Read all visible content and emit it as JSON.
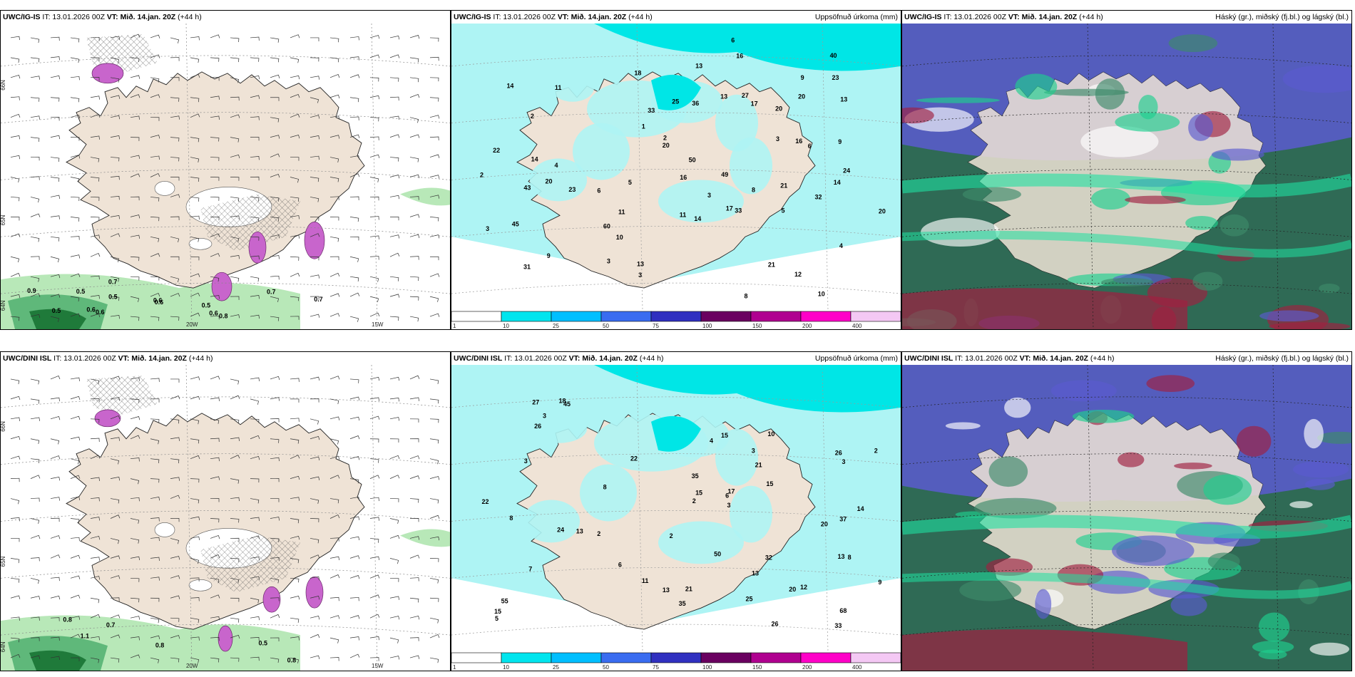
{
  "colors": {
    "land": "#efe3d6",
    "snow_pink": "#c865cc",
    "precip_light": "#aef4f4",
    "precip_mid": "#00e6e6",
    "green_light": "#b8e8b8",
    "green_dark": "#1f7a3a",
    "cloud_high": "#3d8a6a",
    "cloud_mid": "#5a5ad0",
    "cloud_low": "#a02040",
    "colorbar": [
      "#ffffff",
      "#00e5ee",
      "#00bfff",
      "#3a6cf0",
      "#3030c0",
      "#6a0060",
      "#b00090",
      "#ff00c8",
      "#f4c8f4"
    ]
  },
  "colorbar_ticks": [
    "1",
    "10",
    "25",
    "50",
    "75",
    "100",
    "150",
    "200",
    "400"
  ],
  "rows": [
    {
      "model": "UWC/IG-IS",
      "panels": [
        {
          "id": "wind-snow",
          "model": "UWC/IG-IS",
          "it": "IT: 13.01.2026 00Z",
          "vt_label": "VT:",
          "vt": "Mið. 14.jan. 20Z",
          "lead": "(+44 h)",
          "right": "",
          "lon_labels": [
            "20W",
            "15W"
          ],
          "lat_labels": [
            "66N",
            "65N",
            "64N"
          ],
          "values": [
            "0.8",
            "0.7",
            "0.6",
            "0.5",
            "0.7",
            "0.6",
            "0.7",
            "0.5",
            "0.6",
            "0.6",
            "0.5",
            "0.9",
            "0.6",
            "0.5"
          ]
        },
        {
          "id": "precip",
          "model": "UWC/IG-IS",
          "it": "IT: 13.01.2026 00Z",
          "vt_label": "VT:",
          "vt": "Mið. 14.jan. 20Z",
          "lead": "(+44 h)",
          "right": "Uppsöfnuð úrkoma (mm)",
          "values": [
            "10",
            "20",
            "17",
            "14",
            "4",
            "2",
            "9",
            "6",
            "20",
            "25",
            "17",
            "12",
            "10",
            "18",
            "49",
            "45",
            "21",
            "50",
            "22",
            "31",
            "40",
            "36",
            "16",
            "20",
            "24",
            "14",
            "23",
            "16",
            "20",
            "23",
            "33",
            "43",
            "60",
            "27",
            "33",
            "32",
            "14",
            "21",
            "9",
            "8",
            "11",
            "14",
            "3",
            "6",
            "5",
            "4",
            "13",
            "16",
            "13",
            "11",
            "8",
            "9",
            "5",
            "6",
            "1",
            "2",
            "3",
            "2",
            "3",
            "3",
            "13",
            "20",
            "11",
            "13",
            "3"
          ]
        },
        {
          "id": "cloud",
          "model": "UWC/IG-IS",
          "it": "IT: 13.01.2026 00Z",
          "vt_label": "VT:",
          "vt": "Mið. 14.jan. 20Z",
          "lead": "(+44 h)",
          "right": "Háský (gr.), miðský (fj.bl.) og lágský (bl.)"
        }
      ]
    },
    {
      "model": "UWC/DINI ISL",
      "panels": [
        {
          "id": "wind-snow",
          "model": "UWC/DINI ISL",
          "it": "IT: 13.01.2026 00Z",
          "vt_label": "VT:",
          "vt": "Mið. 14.jan. 20Z",
          "lead": "(+44 h)",
          "right": "",
          "lon_labels": [
            "20W",
            "15W"
          ],
          "lat_labels": [
            "66N",
            "65N",
            "64N"
          ],
          "values": [
            "0.8",
            "1.1",
            "0.8",
            "0.5",
            "0.8",
            "0.7"
          ]
        },
        {
          "id": "precip",
          "model": "UWC/DINI ISL",
          "it": "IT: 13.01.2026 00Z",
          "vt_label": "VT:",
          "vt": "Mið. 14.jan. 20Z",
          "lead": "(+44 h)",
          "right": "Uppsöfnuð úrkoma (mm)",
          "values": [
            "7",
            "17",
            "13",
            "9",
            "15",
            "12",
            "35",
            "21",
            "8",
            "55",
            "45",
            "50",
            "37",
            "35",
            "27",
            "11",
            "33",
            "26",
            "68",
            "32",
            "24",
            "10",
            "8",
            "22",
            "18",
            "22",
            "20",
            "25",
            "26",
            "15",
            "13",
            "15",
            "15",
            "3",
            "5",
            "4",
            "6",
            "2",
            "3",
            "3",
            "3",
            "3",
            "2",
            "2",
            "2",
            "14",
            "26",
            "21",
            "13",
            "13",
            "6",
            "8",
            "20"
          ]
        },
        {
          "id": "cloud",
          "model": "UWC/DINI ISL",
          "it": "IT: 13.01.2026 00Z",
          "vt_label": "VT:",
          "vt": "Mið. 14.jan. 20Z",
          "lead": "(+44 h)",
          "right": "Háský (gr.), miðský (fj.bl.) og lágský (bl.)"
        }
      ]
    }
  ]
}
